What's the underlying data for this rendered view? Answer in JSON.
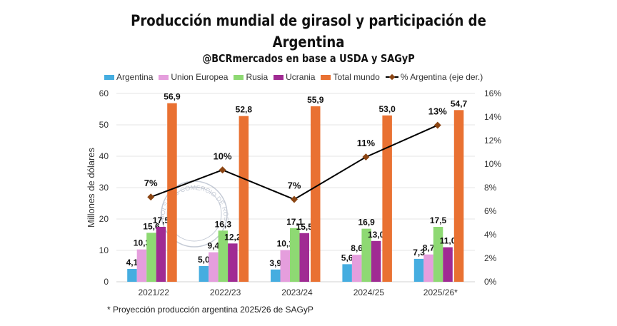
{
  "chart_data": {
    "type": "bar",
    "title": "Producción mundial de girasol y participación de Argentina",
    "title_line1": "Producción mundial de girasol y participación de",
    "title_line2": "Argentina",
    "subtitle": "@BCRmercados en base a USDA y SAGyP",
    "ylabel": "Millones de dólares",
    "ylim": [
      0,
      60
    ],
    "y_ticks": [
      "0",
      "10",
      "20",
      "30",
      "40",
      "50",
      "60"
    ],
    "y2lim": [
      0,
      16
    ],
    "y2_ticks": [
      "0%",
      "2%",
      "4%",
      "6%",
      "8%",
      "10%",
      "12%",
      "14%",
      "16%"
    ],
    "grid": true,
    "legend_position": "top",
    "categories": [
      "2021/22",
      "2022/23",
      "2023/24",
      "2024/25",
      "2025/26*"
    ],
    "series": [
      {
        "name": "Argentina",
        "color": "#45ADE0",
        "values": [
          4.1,
          5.0,
          3.9,
          5.6,
          7.3
        ],
        "labels": [
          "4,1",
          "5,0",
          "3,9",
          "5,6",
          "7,3"
        ]
      },
      {
        "name": "Union Europea",
        "color": "#E59EDD",
        "values": [
          10.3,
          9.4,
          10.1,
          8.6,
          8.7
        ],
        "labels": [
          "10,3",
          "9,4",
          "10,1",
          "8,6",
          "8,7"
        ]
      },
      {
        "name": "Rusia",
        "color": "#8ED973",
        "values": [
          15.6,
          16.3,
          17.1,
          16.9,
          17.5
        ],
        "labels": [
          "15,6",
          "16,3",
          "17,1",
          "16,9",
          "17,5"
        ]
      },
      {
        "name": "Ucrania",
        "color": "#A02B93",
        "values": [
          17.5,
          12.2,
          15.5,
          13.0,
          11.0
        ],
        "labels": [
          "17,5",
          "12,2",
          "15,5",
          "13,0",
          "11,0"
        ]
      },
      {
        "name": "Total mundo",
        "color": "#E97132",
        "values": [
          56.9,
          52.8,
          55.9,
          53.0,
          54.7
        ],
        "labels": [
          "56,9",
          "52,8",
          "55,9",
          "53,0",
          "54,7"
        ]
      }
    ],
    "line_series": {
      "name": "% Argentina (eje der.)",
      "axis": "right",
      "color": "#000000",
      "marker_color": "#8B4513",
      "values": [
        7.2,
        9.5,
        7.0,
        10.6,
        13.3
      ],
      "labels": [
        "7%",
        "10%",
        "7%",
        "11%",
        "13%"
      ]
    },
    "footnote": "* Proyección producción argentina 2025/26 de SAGyP",
    "watermark": "BOLSA DE COMERCIO DE ROSARIO"
  }
}
